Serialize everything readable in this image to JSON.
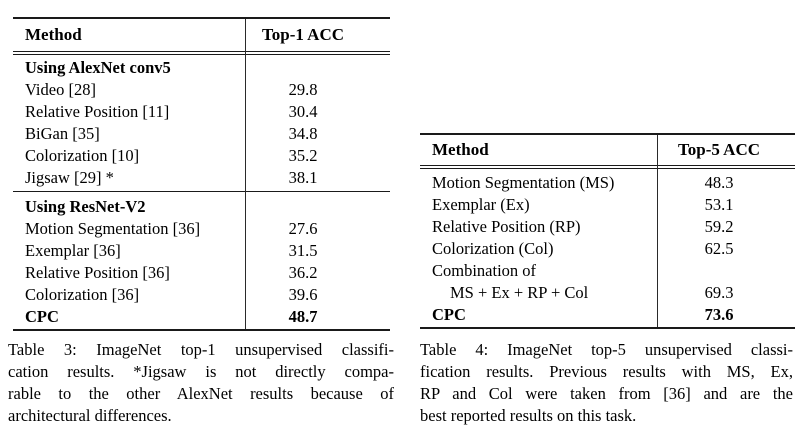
{
  "table3": {
    "header": {
      "method": "Method",
      "value": "Top-1 ACC"
    },
    "section1": {
      "title": "Using AlexNet conv5",
      "rows": [
        {
          "method": "Video [28]",
          "value": "29.8"
        },
        {
          "method": "Relative Position [11]",
          "value": "30.4"
        },
        {
          "method": "BiGan [35]",
          "value": "34.8"
        },
        {
          "method": "Colorization [10]",
          "value": "35.2"
        },
        {
          "method": "Jigsaw [29] *",
          "value": "38.1"
        }
      ]
    },
    "section2": {
      "title": "Using ResNet-V2",
      "rows": [
        {
          "method": "Motion Segmentation [36]",
          "value": "27.6"
        },
        {
          "method": "Exemplar [36]",
          "value": "31.5"
        },
        {
          "method": "Relative Position [36]",
          "value": "36.2"
        },
        {
          "method": "Colorization [36]",
          "value": "39.6"
        }
      ]
    },
    "cpc": {
      "method": "CPC",
      "value": "48.7"
    },
    "caption": [
      "Table 3: ImageNet top-1 unsupervised classifi-",
      "cation results. *Jigsaw is not directly compa-",
      "rable to the other AlexNet results because of",
      "architectural differences."
    ]
  },
  "table4": {
    "header": {
      "method": "Method",
      "value": "Top-5 ACC"
    },
    "rows": [
      {
        "method": "Motion Segmentation (MS)",
        "value": "48.3"
      },
      {
        "method": "Exemplar (Ex)",
        "value": "53.1"
      },
      {
        "method": "Relative Position (RP)",
        "value": "59.2"
      },
      {
        "method": "Colorization (Col)",
        "value": "62.5"
      },
      {
        "method": "Combination of",
        "value": ""
      },
      {
        "method": "MS + Ex + RP + Col",
        "value": "69.3"
      }
    ],
    "cpc": {
      "method": "CPC",
      "value": "73.6"
    },
    "caption": [
      "Table 4: ImageNet top-5 unsupervised classi-",
      "fication results. Previous results with MS, Ex,",
      "RP and Col were taken from [36] and are the",
      "best reported results on this task."
    ]
  },
  "colors": {
    "text": "#000000",
    "rule": "#1a1a1a",
    "background": "#ffffff"
  }
}
